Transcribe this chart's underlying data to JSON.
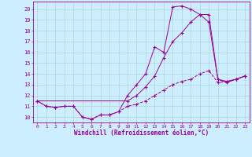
{
  "xlabel": "Windchill (Refroidissement éolien,°C)",
  "background_color": "#cceeff",
  "grid_color": "#aacccc",
  "line_color": "#990099",
  "xlim": [
    -0.5,
    23.5
  ],
  "ylim": [
    9.5,
    20.7
  ],
  "yticks": [
    10,
    11,
    12,
    13,
    14,
    15,
    16,
    17,
    18,
    19,
    20
  ],
  "xticks": [
    0,
    1,
    2,
    3,
    4,
    5,
    6,
    7,
    8,
    9,
    10,
    11,
    12,
    13,
    14,
    15,
    16,
    17,
    18,
    19,
    20,
    21,
    22,
    23
  ],
  "line1_x": [
    0,
    1,
    2,
    3,
    4,
    5,
    6,
    7,
    8,
    9,
    10,
    11,
    12,
    13,
    14,
    15,
    16,
    17,
    18,
    19,
    20,
    21,
    22,
    23
  ],
  "line1_y": [
    11.5,
    11.0,
    10.9,
    11.0,
    11.0,
    10.0,
    9.8,
    10.2,
    10.2,
    10.5,
    11.0,
    11.2,
    11.5,
    12.0,
    12.5,
    13.0,
    13.3,
    13.5,
    14.0,
    14.3,
    13.2,
    13.3,
    13.5,
    13.8
  ],
  "line2_x": [
    0,
    1,
    2,
    3,
    4,
    5,
    6,
    7,
    8,
    9,
    10,
    11,
    12,
    13,
    14,
    15,
    16,
    17,
    18,
    19,
    20,
    21,
    22,
    23
  ],
  "line2_y": [
    11.5,
    11.0,
    10.9,
    11.0,
    11.0,
    10.0,
    9.8,
    10.2,
    10.2,
    10.5,
    12.0,
    13.0,
    14.0,
    16.5,
    16.0,
    20.2,
    20.3,
    20.0,
    19.5,
    19.5,
    13.5,
    13.3,
    13.5,
    13.8
  ],
  "line3_x": [
    0,
    10,
    11,
    12,
    13,
    14,
    15,
    16,
    17,
    18,
    19,
    20,
    21,
    22,
    23
  ],
  "line3_y": [
    11.5,
    11.5,
    12.0,
    12.8,
    13.8,
    15.5,
    17.0,
    17.8,
    18.8,
    19.5,
    18.8,
    13.5,
    13.2,
    13.5,
    13.8
  ]
}
